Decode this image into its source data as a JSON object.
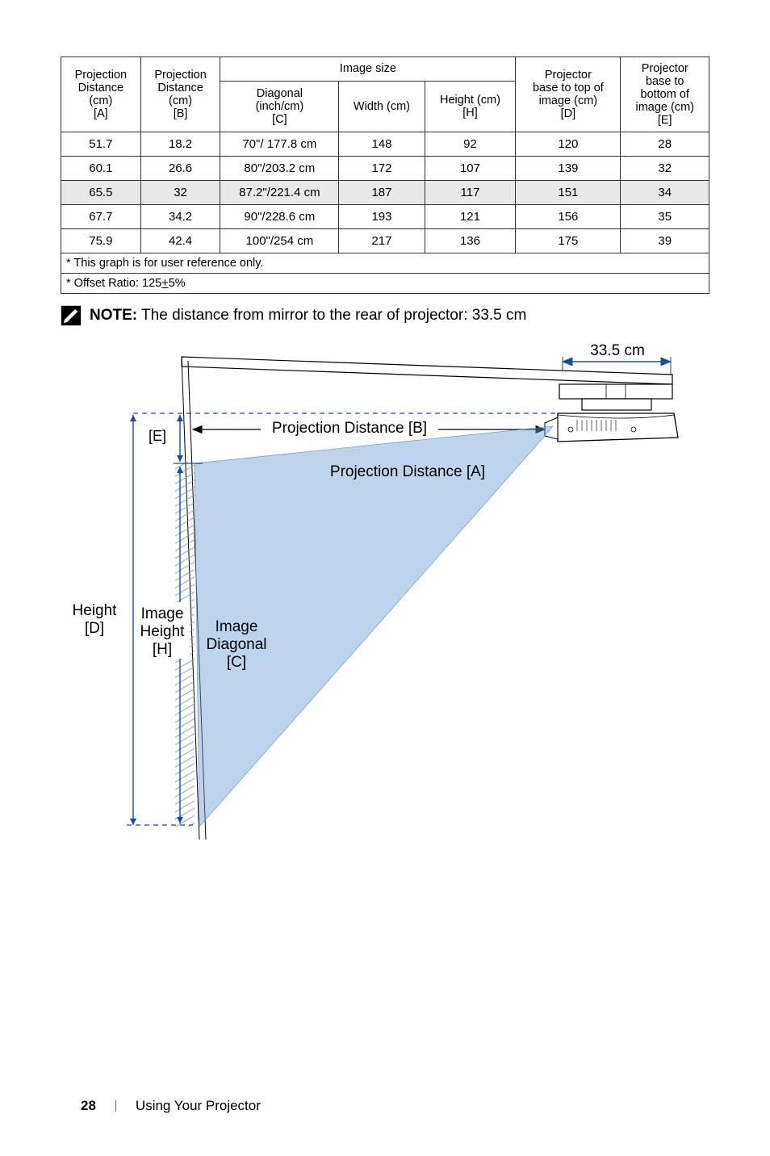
{
  "table": {
    "headers": {
      "colA": "Projection Distance (cm)\n[A]",
      "colB": "Projection Distance (cm)\n[B]",
      "imageSize": "Image size",
      "diagonal": "Diagonal (inch/cm)\n[C]",
      "width": "Width (cm)",
      "height": "Height (cm)\n[H]",
      "projD": "Projector base to top of image (cm)\n[D]",
      "projE": "Projector base to bottom of image (cm)\n[E]"
    },
    "rows": [
      {
        "a": "51.7",
        "b": "18.2",
        "c": "70\"/ 177.8 cm",
        "w": "148",
        "h": "92",
        "d": "120",
        "e": "28",
        "hl": false
      },
      {
        "a": "60.1",
        "b": "26.6",
        "c": "80\"/203.2 cm",
        "w": "172",
        "h": "107",
        "d": "139",
        "e": "32",
        "hl": false
      },
      {
        "a": "65.5",
        "b": "32",
        "c": "87.2\"/221.4 cm",
        "w": "187",
        "h": "117",
        "d": "151",
        "e": "34",
        "hl": true
      },
      {
        "a": "67.7",
        "b": "34.2",
        "c": "90\"/228.6 cm",
        "w": "193",
        "h": "121",
        "d": "156",
        "e": "35",
        "hl": false
      },
      {
        "a": "75.9",
        "b": "42.4",
        "c": "100\"/254 cm",
        "w": "217",
        "h": "136",
        "d": "175",
        "e": "39",
        "hl": false
      }
    ],
    "footnote1": "* This graph is for user reference only.",
    "footnote2": "* Offset Ratio: 125±5%"
  },
  "note": {
    "label": "NOTE:",
    "text": " The distance from mirror to the rear of projector: 33.5 cm"
  },
  "diagram": {
    "dim_top": "33.5 cm",
    "label_E": "[E]",
    "label_B": "Projection Distance [B]",
    "label_A": "Projection Distance [A]",
    "label_heightD_1": "Height",
    "label_heightD_2": "[D]",
    "label_imgH_1": "Image",
    "label_imgH_2": "Height",
    "label_imgH_3": "[H]",
    "label_imgC_1": "Image",
    "label_imgC_2": "Diagonal",
    "label_imgC_3": "[C]",
    "colors": {
      "stroke": "#000000",
      "dash": "#1b4aa0",
      "hatch": "#6fa0d8",
      "beam_fill": "#6fa0d8",
      "beam_stroke": "#5a8cc8"
    }
  },
  "footer": {
    "page": "28",
    "section": "Using Your Projector"
  }
}
